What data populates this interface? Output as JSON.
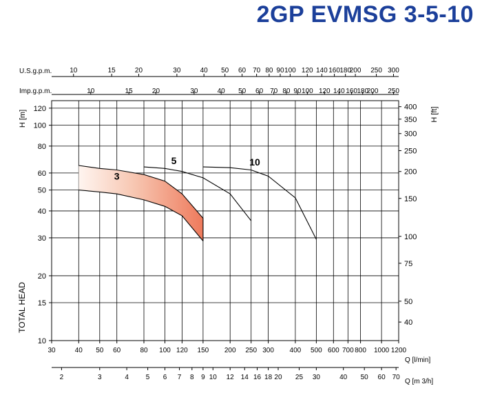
{
  "title": "2GP EVMSG 3-5-10",
  "colors": {
    "title": "#1b3f9a",
    "fill_light": "#fbe3d8",
    "fill_dark": "#ef7a5a"
  },
  "chart_data": {
    "type": "line",
    "x_scale": "log",
    "y_scale": "log",
    "grid": true,
    "legend": "none",
    "xlim": [
      30,
      1200
    ],
    "ylim": [
      10,
      130
    ],
    "xlabel": "Q [l/min]",
    "ylabel": "H [m]",
    "ylabel_right": "H [ft]",
    "side_label": "TOTAL HEAD",
    "x_ticks": [
      30,
      40,
      50,
      60,
      80,
      100,
      120,
      150,
      200,
      250,
      300,
      400,
      500,
      600,
      700,
      800,
      1000,
      1200
    ],
    "y_ticks": [
      10,
      15,
      20,
      30,
      40,
      50,
      60,
      80,
      100,
      120
    ],
    "ft_ticks": [
      40,
      50,
      75,
      100,
      150,
      200,
      250,
      300,
      350,
      400
    ],
    "usgpm_label": "U.S.g.p.m.",
    "usgpm_ticks": [
      10,
      15,
      20,
      30,
      40,
      50,
      60,
      70,
      80,
      90,
      100,
      120,
      140,
      160,
      180,
      200,
      250,
      300
    ],
    "impgpm_label": "Imp.g.p.m.",
    "impgpm_ticks": [
      10,
      15,
      20,
      30,
      40,
      50,
      60,
      70,
      80,
      90,
      100,
      120,
      140,
      160,
      180,
      200,
      250
    ],
    "m3h_label": "Q [m 3/h]",
    "m3h_ticks": [
      2,
      3,
      4,
      5,
      6,
      7,
      8,
      9,
      10,
      12,
      14,
      16,
      18,
      20,
      25,
      30,
      40,
      50,
      60,
      70
    ],
    "series": [
      {
        "name": "3",
        "band": true,
        "upper": [
          [
            40,
            65
          ],
          [
            50,
            63
          ],
          [
            60,
            62
          ],
          [
            80,
            59
          ],
          [
            100,
            55
          ],
          [
            120,
            48
          ],
          [
            150,
            37
          ]
        ],
        "lower": [
          [
            40,
            50
          ],
          [
            50,
            49
          ],
          [
            60,
            48
          ],
          [
            80,
            45
          ],
          [
            100,
            42
          ],
          [
            120,
            38
          ],
          [
            150,
            29
          ]
        ]
      },
      {
        "name": "5",
        "values": [
          [
            80,
            64
          ],
          [
            100,
            63
          ],
          [
            120,
            61
          ],
          [
            150,
            57
          ],
          [
            200,
            48
          ],
          [
            250,
            36
          ]
        ]
      },
      {
        "name": "10",
        "values": [
          [
            150,
            64
          ],
          [
            200,
            63.5
          ],
          [
            250,
            62
          ],
          [
            300,
            58
          ],
          [
            400,
            46
          ],
          [
            500,
            29.5
          ]
        ]
      }
    ]
  }
}
